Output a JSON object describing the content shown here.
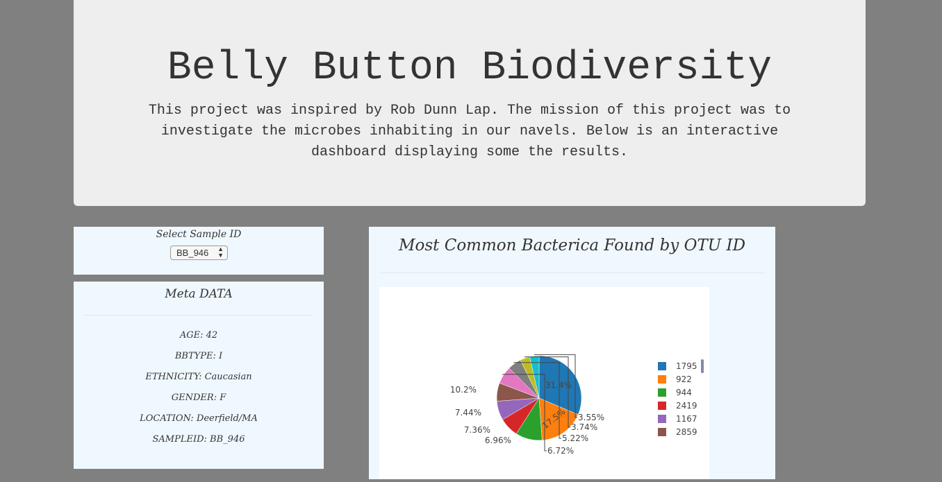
{
  "header": {
    "title": "Belly Button Biodiversity",
    "description": "This project was inspired by Rob Dunn Lap. The mission of this project was to investigate the microbes inhabiting in our navels. Below is an interactive dashboard displaying some the results."
  },
  "selector": {
    "label": "Select Sample ID",
    "selected": "BB_946"
  },
  "metadata": {
    "title": "Meta DATA",
    "items": [
      "AGE: 42",
      "BBTYPE: I",
      "ETHNICITY: Caucasian",
      "GENDER: F",
      "LOCATION: Deerfield/MA",
      "SAMPLEID: BB_946"
    ]
  },
  "chart": {
    "title": "Most Common Bacterica Found by OTU ID"
  },
  "chart_data": {
    "type": "pie",
    "labels": [
      "1795",
      "922",
      "944",
      "2419",
      "1167",
      "2859",
      "",
      "",
      "",
      ""
    ],
    "values": [
      31.4,
      17.5,
      10.2,
      7.44,
      7.36,
      6.96,
      6.72,
      5.22,
      3.74,
      3.55
    ],
    "value_labels": [
      "31.4%",
      "17.5%",
      "10.2%",
      "7.44%",
      "7.36%",
      "6.96%",
      "6.72%",
      "5.22%",
      "3.74%",
      "3.55%"
    ],
    "colors": [
      "#1f77b4",
      "#ff7f0e",
      "#2ca02c",
      "#d62728",
      "#9467bd",
      "#8c564b",
      "#e377c2",
      "#7f7f7f",
      "#bcbd22",
      "#17becf"
    ],
    "legend": [
      "1795",
      "922",
      "944",
      "2419",
      "1167",
      "2859"
    ],
    "legend_position": "right"
  }
}
